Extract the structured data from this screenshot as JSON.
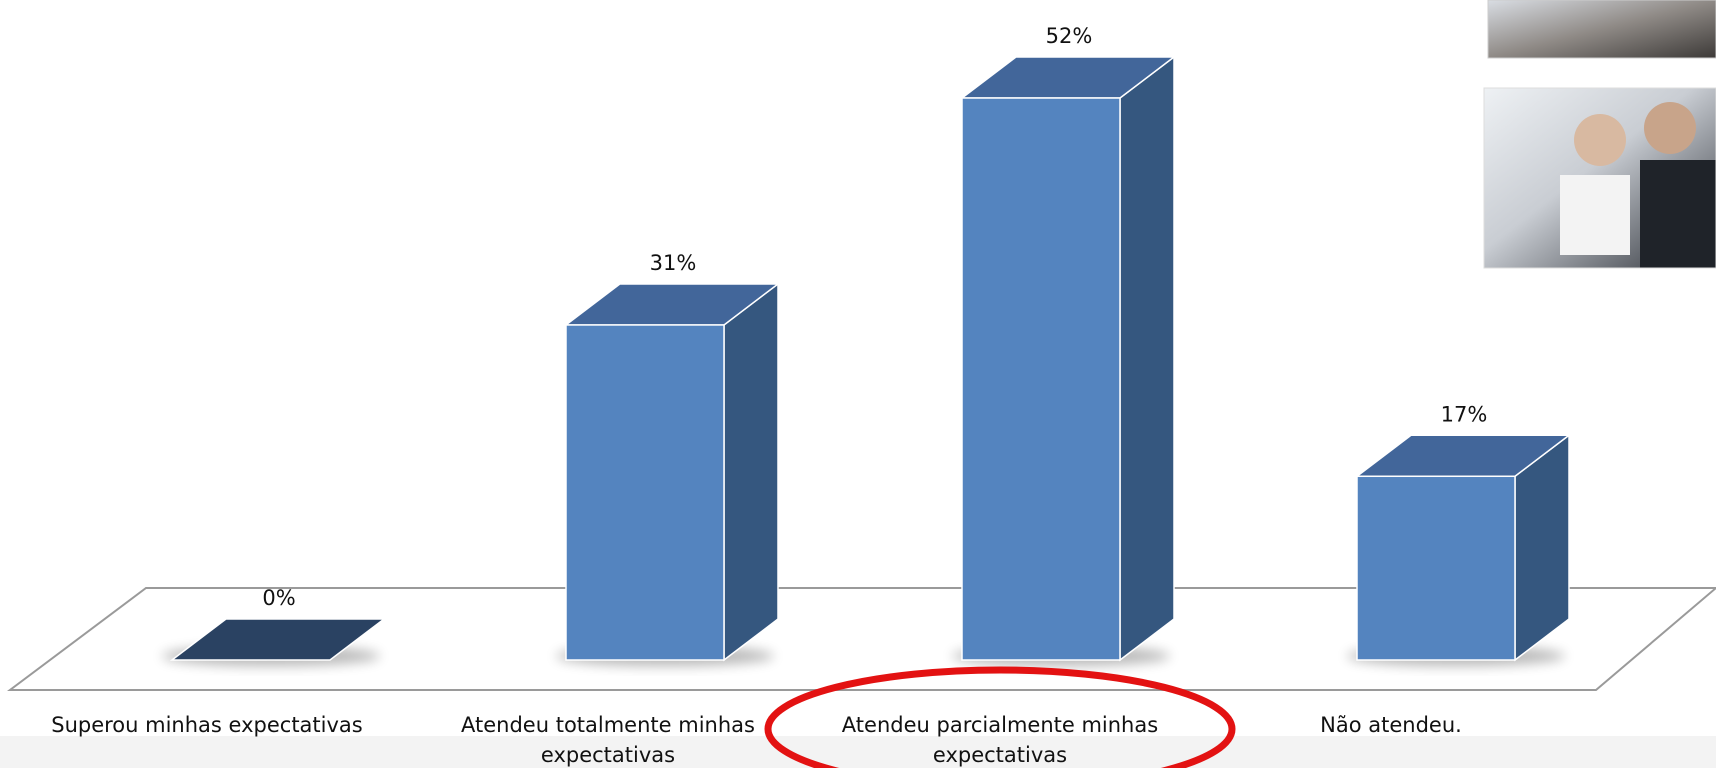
{
  "colors": {
    "bar_front": "#5484bf",
    "bar_top": "#42669a",
    "bar_side": "#35577f",
    "zero_bar": "#2a4262",
    "floor_stroke": "#9a9a9a",
    "highlight": "#e31212",
    "edge": "#ffffff"
  },
  "chart_data": {
    "type": "bar",
    "categories": [
      "Superou minhas expectativas",
      "Atendeu totalmente minhas expectativas",
      "Atendeu parcialmente minhas expectativas",
      "Não atendeu."
    ],
    "category_label_lines": [
      [
        "Superou minhas expectativas"
      ],
      [
        "Atendeu totalmente minhas",
        "expectativas"
      ],
      [
        "Atendeu parcialmente minhas",
        "expectativas"
      ],
      [
        "Não atendeu."
      ]
    ],
    "values": [
      0,
      31,
      52,
      17
    ],
    "data_labels": [
      "0%",
      "31%",
      "52%",
      "17%"
    ],
    "ylim": [
      0,
      52
    ],
    "grid": false,
    "legend": "none",
    "style": "3d-column",
    "highlighted_category": "Atendeu parcialmente minhas expectativas"
  },
  "images": [
    {
      "name": "handshake-photo",
      "description": "photo-placeholder"
    },
    {
      "name": "business-people-photo",
      "description": "photo-placeholder"
    }
  ]
}
